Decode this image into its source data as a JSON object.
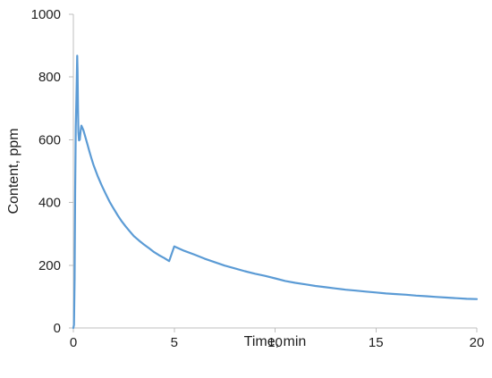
{
  "chart_data": {
    "type": "line",
    "title": "",
    "xlabel": "Time, min",
    "ylabel": "Content, ppm",
    "xlim": [
      0,
      20
    ],
    "ylim": [
      0,
      1000
    ],
    "x_ticks": [
      0,
      5,
      10,
      15,
      20
    ],
    "y_ticks": [
      0,
      200,
      400,
      600,
      800,
      1000
    ],
    "grid": false,
    "legend": "none",
    "series": [
      {
        "color": "#5b9bd5",
        "x": [
          0,
          0.03,
          0.06,
          0.09,
          0.12,
          0.15,
          0.17,
          0.19,
          0.21,
          0.23,
          0.25,
          0.28,
          0.32,
          0.36,
          0.4,
          0.45,
          0.5,
          0.6,
          0.7,
          0.8,
          0.9,
          1.0,
          1.2,
          1.4,
          1.6,
          1.8,
          2.0,
          2.2,
          2.4,
          2.6,
          2.8,
          3.0,
          3.25,
          3.5,
          3.75,
          4.0,
          4.25,
          4.5,
          4.75,
          5.0,
          5.5,
          6.0,
          6.5,
          7.0,
          7.5,
          8.0,
          8.5,
          9.0,
          9.5,
          10.0,
          10.5,
          11.0,
          11.5,
          12.0,
          12.5,
          13.0,
          13.5,
          14.0,
          14.5,
          15.0,
          15.5,
          16.0,
          16.5,
          17.0,
          17.5,
          18.0,
          18.5,
          19.0,
          19.5,
          20.0
        ],
        "y": [
          0,
          10,
          160,
          430,
          640,
          730,
          790,
          868,
          820,
          700,
          625,
          598,
          600,
          628,
          645,
          638,
          630,
          608,
          585,
          562,
          540,
          520,
          485,
          455,
          428,
          402,
          380,
          359,
          340,
          323,
          308,
          293,
          279,
          266,
          254,
          242,
          232,
          223,
          213,
          260,
          246,
          234,
          221,
          210,
          199,
          190,
          181,
          173,
          166,
          158,
          150,
          144,
          139,
          134,
          130,
          126,
          122,
          119,
          116,
          113,
          110,
          108,
          106,
          103,
          101,
          99,
          97,
          95,
          93,
          92
        ]
      }
    ]
  }
}
